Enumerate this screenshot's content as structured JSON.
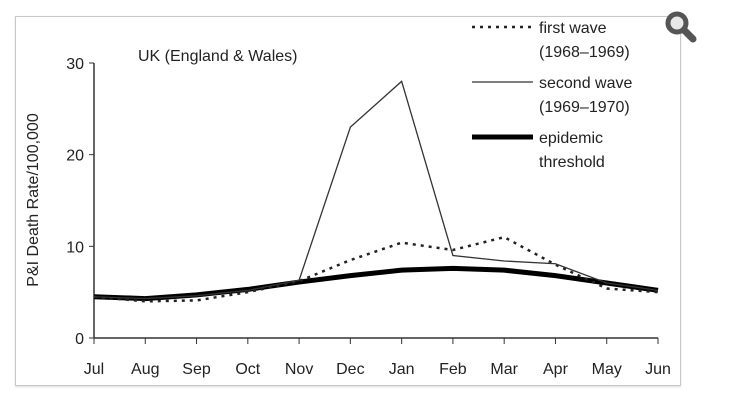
{
  "chart_data": {
    "type": "line",
    "title": "UK (England & Wales)",
    "xlabel": "",
    "ylabel": "P&I Death Rate/100,000",
    "ylim": [
      0,
      30
    ],
    "yticks": [
      0,
      10,
      20,
      30
    ],
    "grid": false,
    "legend_position": "top-right",
    "categories": [
      "Jul",
      "Aug",
      "Sep",
      "Oct",
      "Nov",
      "Dec",
      "Jan",
      "Feb",
      "Mar",
      "Apr",
      "May",
      "Jun"
    ],
    "series": [
      {
        "name": "first wave",
        "name2": "(1968–1969)",
        "style": "dotted",
        "values": [
          4.5,
          4.0,
          4.1,
          5.0,
          6.2,
          8.5,
          10.4,
          9.6,
          11.0,
          8.0,
          5.4,
          5.0
        ]
      },
      {
        "name": "second wave",
        "name2": "(1969–1970)",
        "style": "thin",
        "values": [
          4.5,
          4.3,
          4.6,
          5.2,
          6.3,
          23.0,
          28.0,
          9.0,
          8.4,
          8.1,
          6.0,
          5.2
        ]
      },
      {
        "name": "epidemic",
        "name2": "threshold",
        "style": "thick",
        "values": [
          4.5,
          4.3,
          4.7,
          5.3,
          6.1,
          6.8,
          7.4,
          7.6,
          7.4,
          6.8,
          6.0,
          5.2
        ]
      }
    ]
  },
  "ui": {
    "zoom_icon": "magnifier-icon",
    "icon_color": "#555555"
  }
}
